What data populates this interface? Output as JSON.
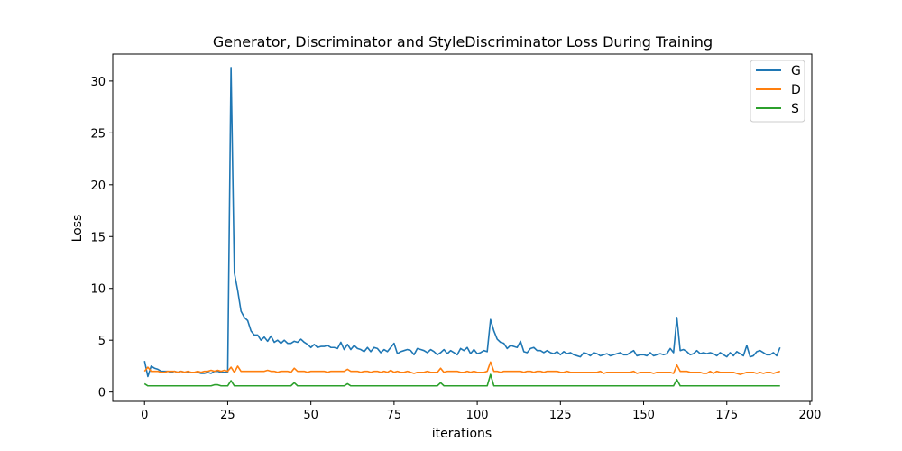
{
  "chart_data": {
    "type": "line",
    "title": "Generator, Discriminator and StyleDiscriminator Loss During Training",
    "xlabel": "iterations",
    "ylabel": "Loss",
    "xlim": [
      -9.55,
      200.55
    ],
    "ylim": [
      -0.9,
      32.6
    ],
    "xticks": [
      0,
      25,
      50,
      75,
      100,
      125,
      150,
      175,
      200
    ],
    "yticks": [
      0,
      5,
      10,
      15,
      20,
      25,
      30
    ],
    "legend_position": "upper-right",
    "grid": false,
    "series": [
      {
        "name": "G",
        "color": "#1f77b4",
        "values": [
          3.0,
          1.5,
          2.5,
          2.3,
          2.2,
          2.0,
          2.0,
          2.0,
          1.9,
          2.0,
          1.9,
          2.0,
          1.9,
          1.9,
          1.9,
          1.9,
          1.9,
          1.8,
          1.8,
          1.9,
          1.8,
          2.0,
          2.0,
          1.9,
          1.9,
          1.9,
          31.3,
          11.5,
          9.8,
          7.8,
          7.2,
          6.9,
          5.9,
          5.5,
          5.5,
          5.0,
          5.3,
          4.9,
          5.4,
          4.8,
          5.0,
          4.7,
          5.0,
          4.7,
          4.7,
          4.9,
          4.8,
          5.1,
          4.8,
          4.6,
          4.3,
          4.6,
          4.3,
          4.4,
          4.4,
          4.5,
          4.3,
          4.3,
          4.2,
          4.8,
          4.1,
          4.6,
          4.1,
          4.5,
          4.2,
          4.1,
          3.9,
          4.3,
          3.9,
          4.3,
          4.2,
          3.8,
          4.1,
          3.9,
          4.3,
          4.7,
          3.7,
          3.9,
          4.0,
          4.1,
          4.0,
          3.6,
          4.2,
          4.1,
          4.0,
          3.8,
          4.1,
          3.9,
          3.6,
          3.8,
          4.1,
          3.7,
          4.0,
          3.8,
          3.6,
          4.2,
          4.0,
          4.3,
          3.7,
          4.1,
          3.7,
          3.8,
          4.0,
          3.9,
          7.0,
          5.9,
          5.1,
          4.8,
          4.7,
          4.2,
          4.5,
          4.4,
          4.3,
          4.9,
          3.9,
          3.8,
          4.2,
          4.3,
          4.0,
          4.0,
          3.8,
          4.0,
          3.8,
          3.7,
          3.9,
          3.6,
          3.9,
          3.7,
          3.8,
          3.6,
          3.5,
          3.4,
          3.8,
          3.7,
          3.5,
          3.8,
          3.7,
          3.5,
          3.6,
          3.7,
          3.5,
          3.6,
          3.7,
          3.8,
          3.6,
          3.6,
          3.8,
          4.0,
          3.5,
          3.6,
          3.6,
          3.5,
          3.8,
          3.5,
          3.6,
          3.7,
          3.6,
          3.7,
          4.2,
          3.8,
          7.2,
          4.0,
          4.1,
          3.9,
          3.6,
          3.7,
          4.0,
          3.7,
          3.8,
          3.7,
          3.8,
          3.7,
          3.5,
          3.8,
          3.6,
          3.4,
          3.8,
          3.5,
          3.9,
          3.7,
          3.5,
          4.5,
          3.4,
          3.5,
          3.9,
          4.0,
          3.8,
          3.6,
          3.6,
          3.8,
          3.5,
          4.3
        ]
      },
      {
        "name": "D",
        "color": "#ff7f0e",
        "values": [
          2.0,
          2.4,
          2.0,
          2.0,
          2.0,
          1.9,
          1.9,
          2.0,
          2.0,
          2.0,
          1.9,
          2.0,
          1.9,
          2.0,
          1.9,
          1.9,
          2.0,
          1.9,
          2.0,
          2.0,
          2.1,
          2.0,
          2.1,
          2.0,
          2.1,
          2.0,
          2.4,
          1.9,
          2.5,
          2.0,
          2.0,
          2.0,
          2.0,
          2.0,
          2.0,
          2.0,
          2.0,
          2.1,
          2.0,
          2.0,
          1.9,
          2.0,
          2.0,
          2.0,
          1.9,
          2.3,
          2.0,
          2.0,
          2.0,
          1.9,
          2.0,
          2.0,
          2.0,
          2.0,
          2.0,
          1.9,
          2.0,
          2.0,
          2.0,
          2.0,
          2.0,
          2.2,
          2.0,
          2.0,
          2.0,
          1.9,
          2.0,
          2.0,
          1.9,
          2.0,
          2.0,
          1.9,
          2.0,
          1.9,
          2.1,
          1.9,
          2.0,
          1.9,
          1.9,
          2.0,
          1.9,
          1.8,
          1.9,
          1.9,
          1.9,
          2.0,
          1.9,
          1.9,
          1.9,
          2.3,
          1.9,
          2.0,
          2.0,
          2.0,
          2.0,
          1.9,
          1.9,
          2.0,
          1.9,
          2.0,
          1.9,
          1.9,
          1.9,
          2.0,
          2.9,
          2.0,
          2.0,
          1.9,
          2.0,
          2.0,
          2.0,
          2.0,
          2.0,
          2.0,
          1.9,
          2.0,
          2.0,
          1.9,
          2.0,
          2.0,
          1.9,
          2.0,
          2.0,
          2.0,
          2.0,
          1.9,
          1.9,
          2.0,
          1.9,
          1.9,
          1.9,
          1.9,
          1.9,
          1.9,
          1.9,
          1.9,
          1.9,
          2.0,
          1.8,
          1.9,
          1.9,
          1.9,
          1.9,
          1.9,
          1.9,
          1.9,
          1.9,
          2.0,
          1.8,
          1.9,
          1.9,
          1.9,
          1.9,
          1.8,
          1.9,
          1.9,
          1.9,
          1.9,
          1.9,
          1.8,
          2.6,
          2.0,
          2.0,
          2.0,
          1.9,
          1.9,
          1.9,
          1.9,
          1.8,
          1.8,
          2.0,
          1.8,
          2.0,
          1.9,
          1.9,
          1.9,
          1.9,
          1.9,
          1.8,
          1.7,
          1.8,
          1.9,
          1.9,
          1.9,
          1.8,
          1.9,
          1.8,
          1.9,
          1.9,
          1.8,
          1.9,
          2.0
        ]
      },
      {
        "name": "S",
        "color": "#2ca02c",
        "values": [
          0.8,
          0.6,
          0.6,
          0.6,
          0.6,
          0.6,
          0.6,
          0.6,
          0.6,
          0.6,
          0.6,
          0.6,
          0.6,
          0.6,
          0.6,
          0.6,
          0.6,
          0.6,
          0.6,
          0.6,
          0.6,
          0.7,
          0.7,
          0.6,
          0.6,
          0.6,
          1.1,
          0.6,
          0.6,
          0.6,
          0.6,
          0.6,
          0.6,
          0.6,
          0.6,
          0.6,
          0.6,
          0.6,
          0.6,
          0.6,
          0.6,
          0.6,
          0.6,
          0.6,
          0.6,
          0.9,
          0.6,
          0.6,
          0.6,
          0.6,
          0.6,
          0.6,
          0.6,
          0.6,
          0.6,
          0.6,
          0.6,
          0.6,
          0.6,
          0.6,
          0.6,
          0.8,
          0.6,
          0.6,
          0.6,
          0.6,
          0.6,
          0.6,
          0.6,
          0.6,
          0.6,
          0.6,
          0.6,
          0.6,
          0.6,
          0.6,
          0.6,
          0.6,
          0.6,
          0.6,
          0.6,
          0.6,
          0.6,
          0.6,
          0.6,
          0.6,
          0.6,
          0.6,
          0.6,
          0.9,
          0.6,
          0.6,
          0.6,
          0.6,
          0.6,
          0.6,
          0.6,
          0.6,
          0.6,
          0.6,
          0.6,
          0.6,
          0.6,
          0.6,
          1.7,
          0.6,
          0.6,
          0.6,
          0.6,
          0.6,
          0.6,
          0.6,
          0.6,
          0.6,
          0.6,
          0.6,
          0.6,
          0.6,
          0.6,
          0.6,
          0.6,
          0.6,
          0.6,
          0.6,
          0.6,
          0.6,
          0.6,
          0.6,
          0.6,
          0.6,
          0.6,
          0.6,
          0.6,
          0.6,
          0.6,
          0.6,
          0.6,
          0.6,
          0.6,
          0.6,
          0.6,
          0.6,
          0.6,
          0.6,
          0.6,
          0.6,
          0.6,
          0.6,
          0.6,
          0.6,
          0.6,
          0.6,
          0.6,
          0.6,
          0.6,
          0.6,
          0.6,
          0.6,
          0.6,
          0.6,
          1.2,
          0.6,
          0.6,
          0.6,
          0.6,
          0.6,
          0.6,
          0.6,
          0.6,
          0.6,
          0.6,
          0.6,
          0.6,
          0.6,
          0.6,
          0.6,
          0.6,
          0.6,
          0.6,
          0.6,
          0.6,
          0.6,
          0.6,
          0.6,
          0.6,
          0.6,
          0.6,
          0.6,
          0.6,
          0.6,
          0.6,
          0.6
        ]
      }
    ]
  }
}
